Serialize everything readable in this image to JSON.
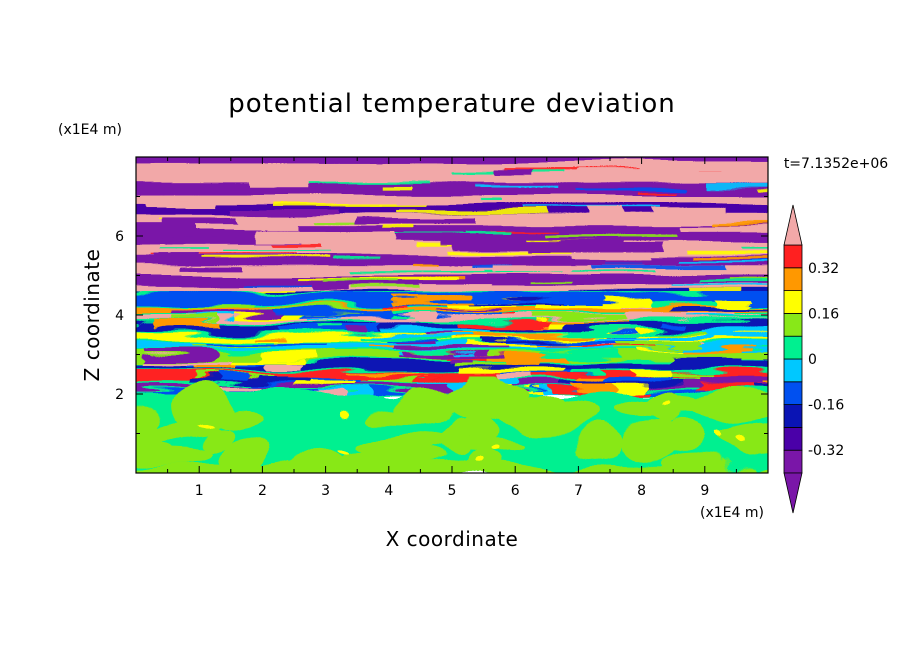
{
  "chart_data": {
    "type": "heatmap",
    "title": "potential temperature deviation",
    "xlabel": "X coordinate",
    "ylabel": "Z coordinate",
    "x_unit": "(x1E4 m)",
    "z_unit": "(x1E4 m)",
    "time_label": "t=7.1352e+06",
    "xlim": [
      0,
      10
    ],
    "ylim": [
      0,
      8
    ],
    "x_ticks": [
      "1",
      "2",
      "3",
      "4",
      "5",
      "6",
      "7",
      "8",
      "9"
    ],
    "y_ticks": [
      "2",
      "4",
      "6"
    ],
    "x_tick_values": [
      1,
      2,
      3,
      4,
      5,
      6,
      7,
      8,
      9
    ],
    "y_tick_values": [
      2,
      4,
      6
    ],
    "colorbar": {
      "levels": [
        -0.4,
        -0.32,
        -0.24,
        -0.16,
        -0.08,
        0,
        0.08,
        0.16,
        0.24,
        0.32,
        0.4
      ],
      "colors": [
        "#7a16a8",
        "#4a00a8",
        "#0a14b4",
        "#0050f0",
        "#00c8ff",
        "#00f090",
        "#88e818",
        "#ffff00",
        "#ff9800",
        "#ff2020",
        "#f2a8a8",
        "#f2a8a8"
      ],
      "labels": [
        "0.32",
        "0.16",
        "0",
        "-0.16",
        "-0.32"
      ],
      "label_values": [
        0.32,
        0.16,
        0,
        -0.16,
        -0.32
      ]
    },
    "regions": {
      "lower_layer_z": [
        0,
        2
      ],
      "lower_layer_values": "mostly 0 to 0.08 with patches below 0",
      "turbulent_layer_z": [
        2,
        4.5
      ],
      "upper_layer_z": [
        4.5,
        8
      ],
      "upper_layer_values": "alternating bands near 0.4 and -0.4"
    }
  }
}
